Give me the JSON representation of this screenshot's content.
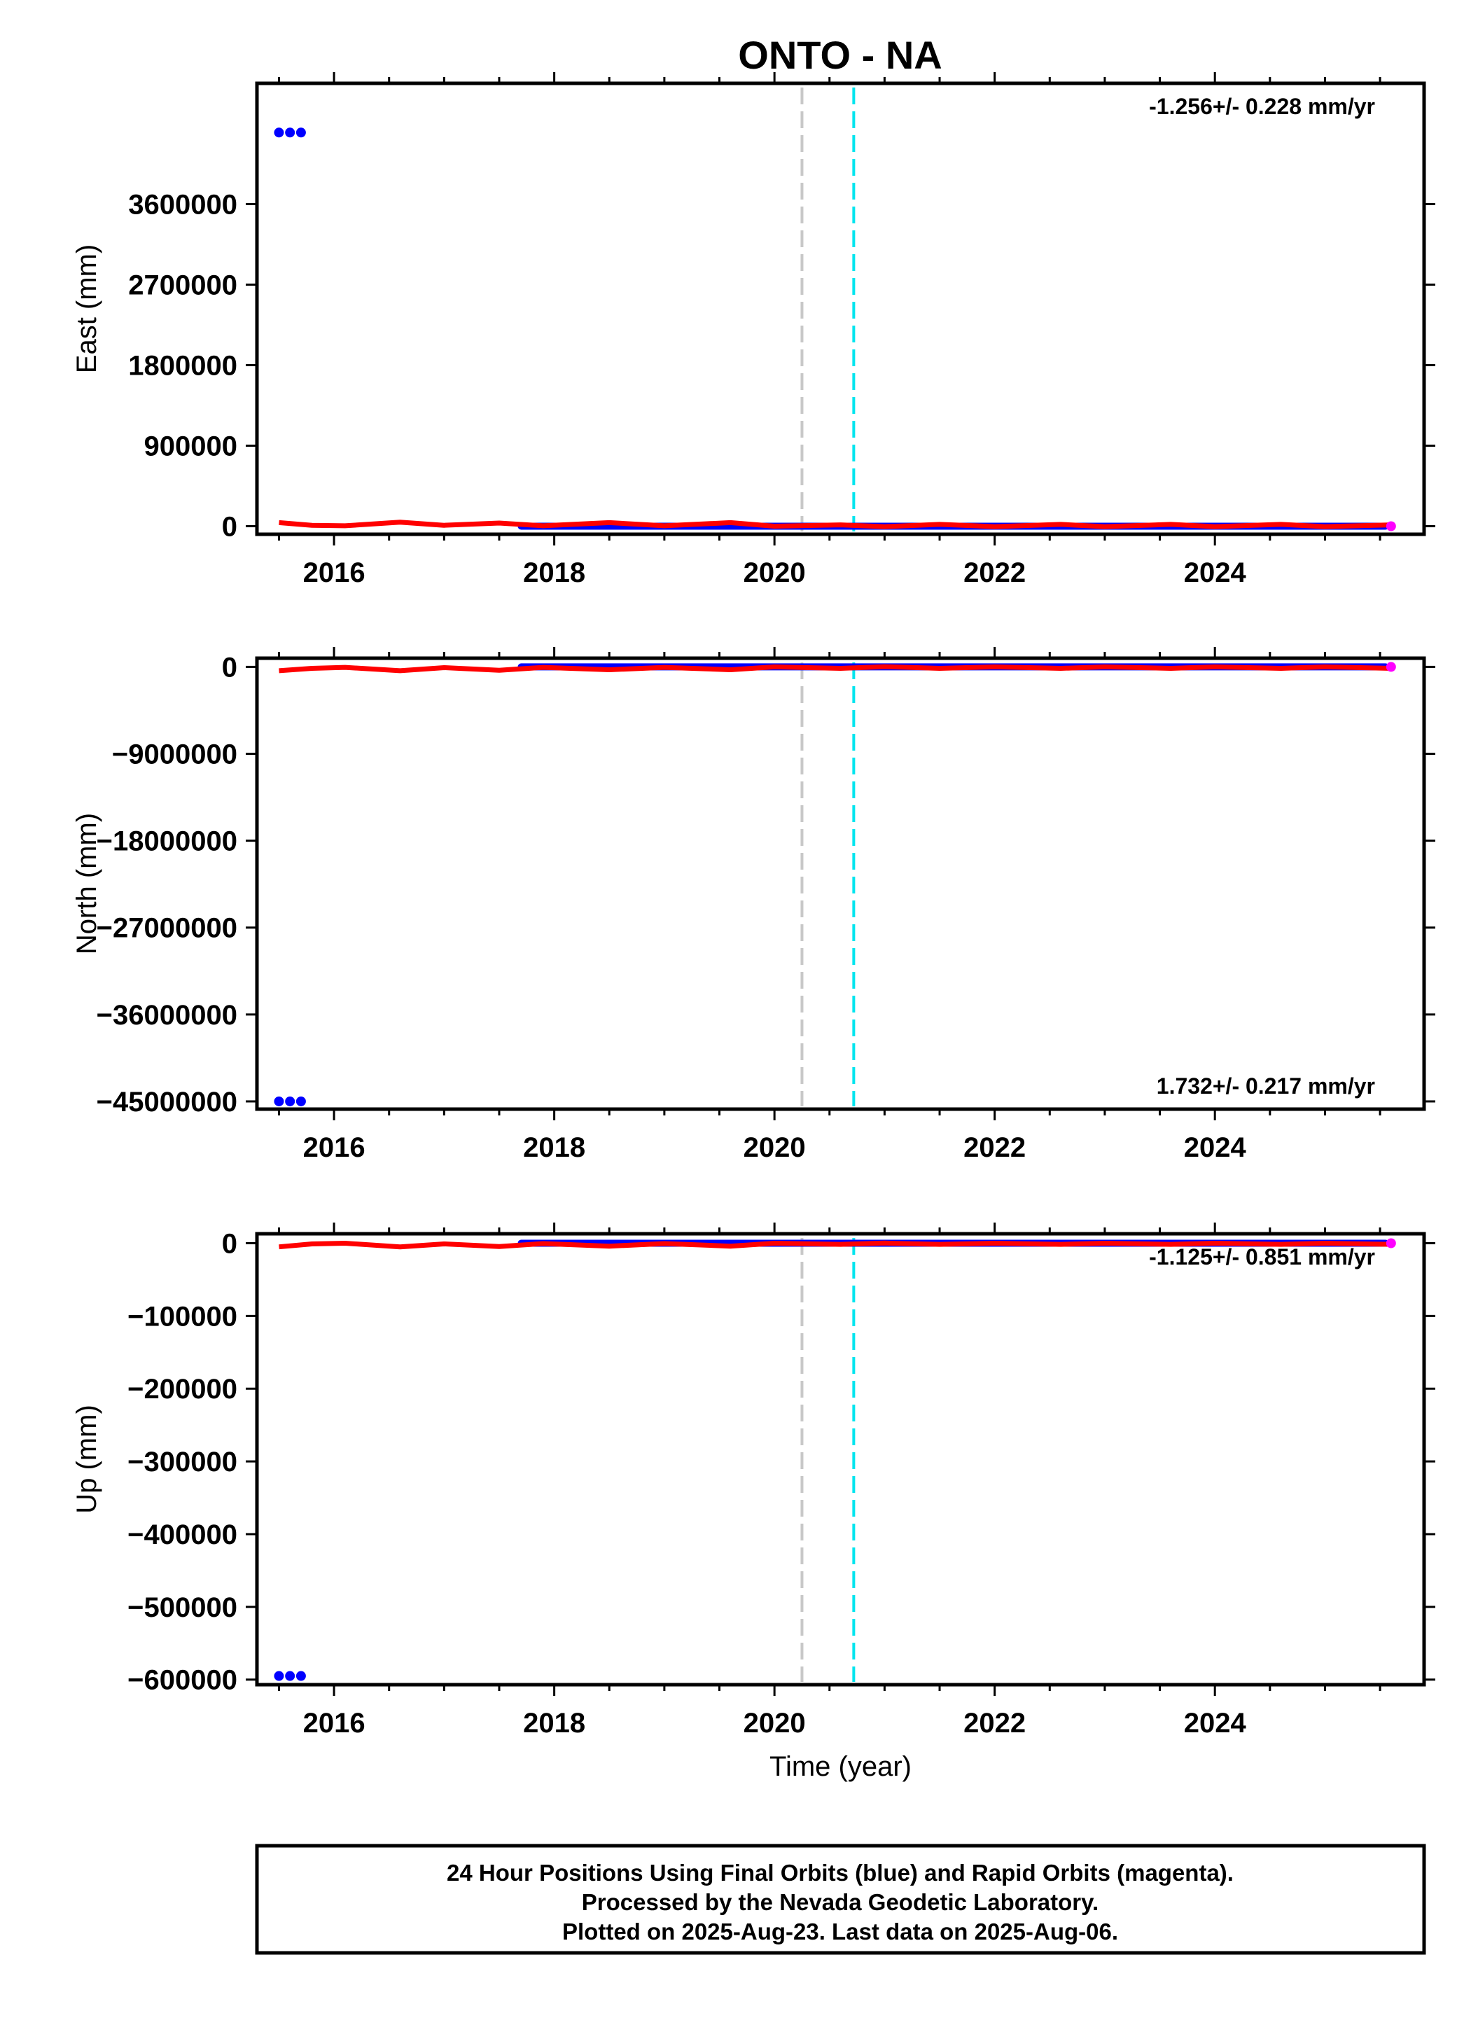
{
  "title": "ONTO - NA",
  "colors": {
    "final_orbits": "#0000ff",
    "rapid_orbits": "#ff00ff",
    "model": "#ff0000",
    "event_line_gray": "#c8c8c8",
    "event_line_cyan": "#00e5ee",
    "frame": "#000000"
  },
  "chart_data": [
    {
      "type": "scatter",
      "panel": "east",
      "ylabel": "East (mm)",
      "xlabel": "",
      "xlim": [
        2015.3,
        2025.9
      ],
      "ylim": [
        -90000,
        4950000
      ],
      "yticks": [
        0,
        900000,
        1800000,
        2700000,
        3600000
      ],
      "xticks": [
        2016,
        2018,
        2020,
        2022,
        2024
      ],
      "rate_label": "-1.256+/- 0.228 mm/yr",
      "rate_position": "top-right",
      "outlier_points": {
        "x": [
          2015.5,
          2015.6,
          2015.7
        ],
        "y": [
          4400000,
          4400000,
          4400000
        ]
      },
      "final_orbits_span": {
        "x": [
          2017.7,
          2025.55
        ],
        "y": 0
      },
      "rapid_orbits_point": {
        "x": 2025.6,
        "y": 0
      },
      "model": {
        "x": [
          2015.5,
          2015.8,
          2016.1,
          2016.6,
          2017.0,
          2017.5,
          2017.9,
          2018.5,
          2019.0,
          2019.6,
          2020.0,
          2020.6,
          2021.0,
          2021.5,
          2022.0,
          2022.6,
          2023.0,
          2023.6,
          2024.0,
          2024.6,
          2025.0,
          2025.6
        ],
        "y": [
          40000,
          10000,
          5000,
          45000,
          10000,
          35000,
          5000,
          40000,
          5000,
          40000,
          0,
          15000,
          -5000,
          20000,
          -5000,
          20000,
          -5000,
          20000,
          -5000,
          20000,
          -5000,
          15000
        ]
      },
      "event_lines": [
        {
          "x": 2020.25,
          "color": "gray"
        },
        {
          "x": 2020.72,
          "color": "cyan"
        }
      ]
    },
    {
      "type": "scatter",
      "panel": "north",
      "ylabel": "North (mm)",
      "xlabel": "",
      "xlim": [
        2015.3,
        2025.9
      ],
      "ylim": [
        -45800000,
        900000
      ],
      "yticks": [
        0,
        -9000000,
        -18000000,
        -27000000,
        -36000000,
        -45000000
      ],
      "xticks": [
        2016,
        2018,
        2020,
        2022,
        2024
      ],
      "rate_label": "1.732+/- 0.217 mm/yr",
      "rate_position": "bottom-right",
      "outlier_points": {
        "x": [
          2015.5,
          2015.6,
          2015.7
        ],
        "y": [
          -45000000,
          -45000000,
          -45000000
        ]
      },
      "final_orbits_span": {
        "x": [
          2017.7,
          2025.55
        ],
        "y": 0
      },
      "rapid_orbits_point": {
        "x": 2025.6,
        "y": 0
      },
      "model": {
        "x": [
          2015.5,
          2015.8,
          2016.1,
          2016.6,
          2017.0,
          2017.5,
          2017.9,
          2018.5,
          2019.0,
          2019.6,
          2020.0,
          2020.6,
          2021.0,
          2021.5,
          2022.0,
          2022.6,
          2023.0,
          2023.6,
          2024.0,
          2024.6,
          2025.0,
          2025.6
        ],
        "y": [
          -400000,
          -150000,
          -50000,
          -400000,
          -80000,
          -350000,
          -50000,
          -300000,
          -50000,
          -300000,
          0,
          -150000,
          20000,
          -150000,
          0,
          -150000,
          0,
          -150000,
          0,
          -150000,
          0,
          -150000
        ]
      },
      "event_lines": [
        {
          "x": 2020.25,
          "color": "gray"
        },
        {
          "x": 2020.72,
          "color": "cyan"
        }
      ]
    },
    {
      "type": "scatter",
      "panel": "up",
      "ylabel": "Up (mm)",
      "xlabel": "Time (year)",
      "xlim": [
        2015.3,
        2025.9
      ],
      "ylim": [
        -607000,
        13000
      ],
      "yticks": [
        0,
        -100000,
        -200000,
        -300000,
        -400000,
        -500000,
        -600000
      ],
      "xticks": [
        2016,
        2018,
        2020,
        2022,
        2024
      ],
      "rate_label": "-1.125+/- 0.851 mm/yr",
      "rate_position": "top-right",
      "outlier_points": {
        "x": [
          2015.5,
          2015.6,
          2015.7
        ],
        "y": [
          -595000,
          -595000,
          -595000
        ]
      },
      "final_orbits_span": {
        "x": [
          2017.7,
          2025.55
        ],
        "y": 0
      },
      "rapid_orbits_point": {
        "x": 2025.6,
        "y": 0
      },
      "model": {
        "x": [
          2015.5,
          2015.8,
          2016.1,
          2016.6,
          2017.0,
          2017.5,
          2017.9,
          2018.5,
          2019.0,
          2019.6,
          2020.0,
          2020.6,
          2021.0,
          2021.5,
          2022.0,
          2022.6,
          2023.0,
          2023.6,
          2024.0,
          2024.6,
          2025.0,
          2025.6
        ],
        "y": [
          -5000,
          -1000,
          0,
          -5000,
          -1000,
          -4500,
          -500,
          -4000,
          -500,
          -4000,
          0,
          -1500,
          200,
          -1500,
          0,
          -1500,
          0,
          -1500,
          0,
          -1500,
          0,
          -1500
        ]
      },
      "event_lines": [
        {
          "x": 2020.25,
          "color": "gray"
        },
        {
          "x": 2020.72,
          "color": "cyan"
        }
      ]
    }
  ],
  "footer": {
    "line1": "24 Hour Positions Using Final Orbits (blue) and Rapid Orbits (magenta).",
    "line2": "Processed by the Nevada Geodetic Laboratory.",
    "line3": "Plotted on 2025-Aug-23. Last data on 2025-Aug-06."
  }
}
